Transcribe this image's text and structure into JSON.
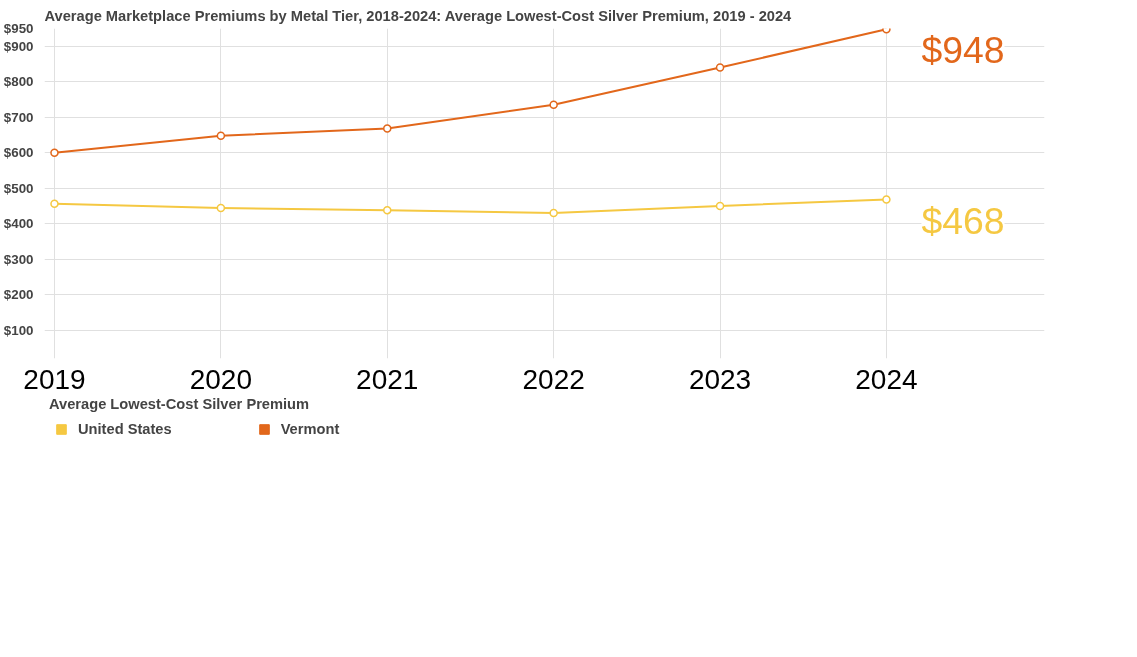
{
  "chart_data": {
    "type": "line",
    "title": "Average Marketplace Premiums by Metal Tier, 2018-2024: Average Lowest-Cost Silver Premium, 2019 - 2024",
    "x": [
      2019,
      2020,
      2021,
      2022,
      2023,
      2024
    ],
    "xlim": [
      2018.94,
      2024.95
    ],
    "xticks": [
      2019,
      2020,
      2021,
      2022,
      2023,
      2024
    ],
    "ylim": [
      20,
      950
    ],
    "yticks": [
      {
        "value": 100,
        "label": "$100"
      },
      {
        "value": 200,
        "label": "$200"
      },
      {
        "value": 300,
        "label": "$300"
      },
      {
        "value": 400,
        "label": "$400"
      },
      {
        "value": 500,
        "label": "$500"
      },
      {
        "value": 600,
        "label": "$600"
      },
      {
        "value": 700,
        "label": "$700"
      },
      {
        "value": 800,
        "label": "$800"
      },
      {
        "value": 900,
        "label": "$900"
      },
      {
        "value": 950,
        "label": "$950"
      }
    ],
    "series": [
      {
        "name": "United States",
        "color": "#f5c842",
        "values": [
          456,
          444,
          438,
          430,
          450,
          468
        ]
      },
      {
        "name": "Vermont",
        "color": "#e2671b",
        "values": [
          600,
          648,
          668,
          735,
          840,
          948
        ]
      }
    ],
    "legend_title": "Average Lowest-Cost Silver Premium",
    "legend": "bottom",
    "marker": "circle",
    "grid": true,
    "annotations": [
      {
        "text": "$948",
        "x": 2024,
        "y": 948
      },
      {
        "text": "$468",
        "x": 2024,
        "y": 468
      }
    ]
  }
}
